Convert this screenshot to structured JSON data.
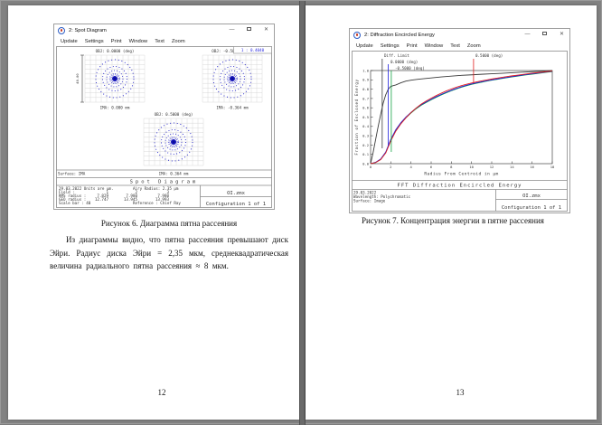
{
  "window_controls": {
    "minimize": "—",
    "close": "✕"
  },
  "left_page": {
    "page_number": "12",
    "caption": "Рисунок 6. Диаграмма пятна рассеяния",
    "paragraph": "Из диаграммы видно, что пятна рассеяния превышают диск Эйри. Радиус диска Эйри = 2,35 мкм, среднеквадратическая величина радиального пятна рассеяния ≈ 8 мкм.",
    "window": {
      "title": "2: Spot Diagram",
      "menu": [
        "Update",
        "Settings",
        "Print",
        "Window",
        "Text",
        "Zoom"
      ],
      "scale_readout": "1 : 0.4040",
      "scale_bar_label": "40.00",
      "spots": [
        {
          "obj": "OBJ: 0.0000 (deg)",
          "ima": "IMA: 0.000 mm"
        },
        {
          "obj": "OBJ: -0.5000 (deg)",
          "ima": "IMA: -0.364 mm"
        },
        {
          "obj": "OBJ: 0.5000 (deg)",
          "ima": "IMA: 0.364 mm"
        }
      ],
      "surface_label": "Surface: IMA",
      "plot_title": "Spot Diagram",
      "footer": {
        "date_units": "29.03.2022  Units are µm.",
        "airy": "Airy Radius: 2.35 µm",
        "field_label": "Field      :",
        "field_values": [
          "1",
          "2",
          "3"
        ],
        "rms_label": "RMS radius :",
        "rms_values": [
          "7.829",
          "7.980",
          "7.980"
        ],
        "geo_label": "GEO radius :",
        "geo_values": [
          "12.747",
          "13.945",
          "13.993"
        ],
        "scale_bar": "Scale bar  : 40",
        "reference": "Reference  : Chief Ray",
        "file": "OI.zmx",
        "config": "Configuration 1 of 1"
      }
    }
  },
  "right_page": {
    "page_number": "13",
    "caption": "Рисунок 7. Концентрация энергии в пятне рассеяния",
    "window": {
      "title": "2: Diffraction Encircled Energy",
      "menu": [
        "Update",
        "Settings",
        "Print",
        "Window",
        "Text",
        "Zoom"
      ],
      "plot_title": "FFT Diffraction Encircled Energy",
      "footer": {
        "date": "29.03.2022",
        "wavelength": "Wavelength: Polychromatic",
        "surface": "Surface: Image",
        "file": "OI.zmx",
        "config": "Configuration 1 of 1"
      }
    }
  },
  "chart_data": {
    "type": "line",
    "title": "FFT Diffraction Encircled Energy",
    "xlabel": "Radius From Centroid in µm",
    "ylabel": "Fraction of Enclosed Energy",
    "xlim": [
      0,
      18
    ],
    "ylim": [
      0,
      1
    ],
    "x_ticks": [
      0,
      2,
      4,
      6,
      8,
      10,
      12,
      14,
      16,
      18
    ],
    "y_ticks": [
      0.0,
      0.1,
      0.2,
      0.3,
      0.4,
      0.5,
      0.6,
      0.7,
      0.8,
      0.9,
      1.0
    ],
    "grid": false,
    "legend_position": "top-callouts",
    "legend": [
      {
        "name": "Diff. Limit",
        "color": "#3a3a3a"
      },
      {
        "name": "0.0000 (deg)",
        "color": "#2020dd"
      },
      {
        "name": "-0.5000 (deg)",
        "color": "#10a040"
      },
      {
        "name": "0.5000 (deg)",
        "color": "#e02020"
      }
    ],
    "series": [
      {
        "name": "Diff. Limit",
        "color": "#3a3a3a",
        "x": [
          0,
          0.25,
          0.5,
          0.75,
          1,
          1.25,
          1.5,
          1.75,
          2,
          2.25,
          2.5,
          3,
          3.5,
          4,
          4.5,
          5,
          6,
          7,
          8,
          9,
          10,
          11,
          12,
          13,
          14,
          15,
          16,
          17,
          18
        ],
        "y": [
          0,
          0.12,
          0.26,
          0.4,
          0.53,
          0.65,
          0.74,
          0.8,
          0.83,
          0.838,
          0.845,
          0.868,
          0.886,
          0.896,
          0.903,
          0.91,
          0.921,
          0.931,
          0.94,
          0.948,
          0.954,
          0.96,
          0.965,
          0.97,
          0.976,
          0.982,
          0.988,
          0.994,
          0.999
        ]
      },
      {
        "name": "0.0000 (deg)",
        "color": "#2020dd",
        "x": [
          0,
          0.5,
          1,
          1.5,
          2,
          2.5,
          3,
          3.5,
          4,
          4.5,
          5,
          5.5,
          6,
          6.5,
          7,
          7.5,
          8,
          8.5,
          9,
          9.5,
          10,
          10.5,
          11,
          11.5,
          12,
          12.5,
          13,
          13.5,
          14,
          14.5,
          15,
          15.5,
          16,
          16.5,
          17,
          17.5,
          18
        ],
        "y": [
          0,
          0.015,
          0.05,
          0.125,
          0.26,
          0.365,
          0.44,
          0.5,
          0.55,
          0.595,
          0.632,
          0.663,
          0.692,
          0.719,
          0.744,
          0.767,
          0.788,
          0.808,
          0.826,
          0.842,
          0.856,
          0.868,
          0.879,
          0.89,
          0.9,
          0.909,
          0.918,
          0.927,
          0.935,
          0.943,
          0.951,
          0.958,
          0.965,
          0.972,
          0.979,
          0.986,
          0.992
        ]
      },
      {
        "name": "-0.5000 (deg)",
        "color": "#10a040",
        "x": [
          0,
          0.5,
          1,
          1.5,
          2,
          2.5,
          3,
          3.5,
          4,
          4.5,
          5,
          5.5,
          6,
          6.5,
          7,
          7.5,
          8,
          8.5,
          9,
          9.5,
          10,
          10.5,
          11,
          11.5,
          12,
          12.5,
          13,
          13.5,
          14,
          14.5,
          15,
          15.5,
          16,
          16.5,
          17,
          17.5,
          18
        ],
        "y": [
          0,
          0.013,
          0.046,
          0.12,
          0.252,
          0.358,
          0.433,
          0.493,
          0.544,
          0.589,
          0.626,
          0.657,
          0.686,
          0.713,
          0.738,
          0.761,
          0.783,
          0.803,
          0.821,
          0.837,
          0.851,
          0.863,
          0.875,
          0.886,
          0.896,
          0.905,
          0.914,
          0.923,
          0.931,
          0.939,
          0.947,
          0.954,
          0.961,
          0.968,
          0.975,
          0.982,
          0.989
        ]
      },
      {
        "name": "0.5000 (deg)",
        "color": "#e02020",
        "x": [
          0,
          0.5,
          1,
          1.5,
          2,
          2.5,
          3,
          3.5,
          4,
          4.5,
          5,
          5.5,
          6,
          6.5,
          7,
          7.5,
          8,
          8.5,
          9,
          9.5,
          10,
          10.5,
          11,
          11.5,
          12,
          12.5,
          13,
          13.5,
          14,
          14.5,
          15,
          15.5,
          16,
          16.5,
          17,
          17.5,
          18
        ],
        "y": [
          0,
          0.012,
          0.044,
          0.115,
          0.245,
          0.35,
          0.428,
          0.492,
          0.548,
          0.596,
          0.638,
          0.672,
          0.703,
          0.731,
          0.757,
          0.781,
          0.802,
          0.821,
          0.838,
          0.853,
          0.866,
          0.878,
          0.889,
          0.899,
          0.909,
          0.918,
          0.927,
          0.935,
          0.943,
          0.95,
          0.957,
          0.964,
          0.971,
          0.977,
          0.983,
          0.989,
          0.995
        ]
      }
    ]
  }
}
